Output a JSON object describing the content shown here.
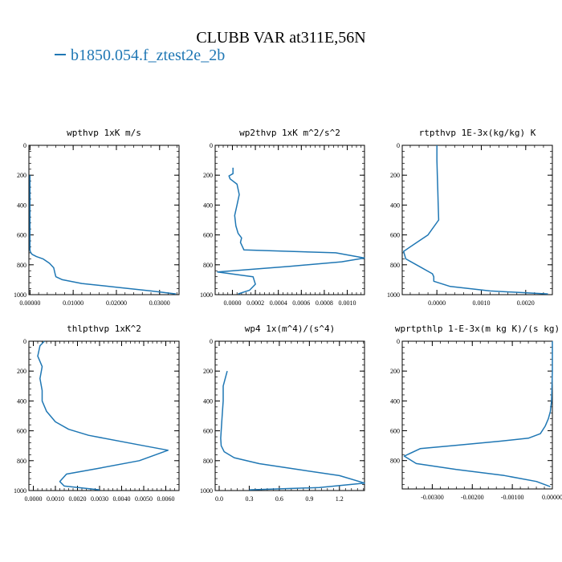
{
  "title": "CLUBB VAR at311E,56N",
  "legend": {
    "label": "b1850.054.f_ztest2e_2b",
    "color": "#1f77b4"
  },
  "chart_data": [
    {
      "type": "line",
      "title": "wpthvp   1xK m/s",
      "xlim": [
        -0.00025,
        0.0345
      ],
      "ylim": [
        1000,
        0
      ],
      "xticks": [
        0,
        0.01,
        0.02,
        0.03
      ],
      "xticklabels": [
        "0.00000",
        "0.01000",
        "0.02000",
        "0.03000"
      ],
      "yticks": [
        0,
        200,
        400,
        600,
        800,
        1000
      ],
      "series": [
        {
          "color": "#1f77b4",
          "x": [
            0,
            0,
            0,
            0,
            0,
            0,
            0,
            0.0001,
            0.0005,
            0.0015,
            0.003,
            0.0045,
            0.0055,
            0.0058,
            0.006,
            0.0075,
            0.012,
            0.02,
            0.028,
            0.0338
          ],
          "y": [
            200,
            300,
            400,
            500,
            600,
            650,
            700,
            715,
            730,
            745,
            760,
            790,
            820,
            860,
            880,
            900,
            925,
            950,
            975,
            995
          ]
        }
      ]
    },
    {
      "type": "line",
      "title": "wp2thvp   1xK m^2/s^2",
      "xlim": [
        -0.00015,
        0.00115
      ],
      "ylim": [
        1000,
        0
      ],
      "xticks": [
        0,
        0.0002,
        0.0004,
        0.0006,
        0.0008,
        0.001
      ],
      "xticklabels": [
        "0.0000",
        "0.0002",
        "0.0004",
        "0.0006",
        "0.0008",
        "0.0010"
      ],
      "yticks": [
        0,
        200,
        400,
        600,
        800,
        1000
      ],
      "series": [
        {
          "color": "#1f77b4",
          "x": [
            5e-06,
            5e-06,
            -3e-05,
            -2e-05,
            4e-05,
            6e-05,
            4e-05,
            2e-05,
            3e-05,
            5e-05,
            8e-05,
            7e-05,
            0.0001,
            0.0009,
            0.00115,
            0.00095,
            0.0005,
            -0.00013,
            0.00018,
            0.0002,
            0.00015,
            5e-05
          ],
          "y": [
            150,
            190,
            205,
            225,
            260,
            330,
            400,
            470,
            540,
            590,
            620,
            650,
            700,
            720,
            755,
            780,
            810,
            848,
            880,
            930,
            970,
            995
          ]
        }
      ]
    },
    {
      "type": "line",
      "title": "rtpthvp   1E-3x(kg/kg) K",
      "xlim": [
        -0.00078,
        0.0026
      ],
      "ylim": [
        1000,
        0
      ],
      "xticks": [
        0,
        0.001,
        0.002
      ],
      "xticklabels": [
        "0.0000",
        "0.0010",
        "0.0020"
      ],
      "yticks": [
        0,
        200,
        400,
        600,
        800,
        1000
      ],
      "series": [
        {
          "color": "#1f77b4",
          "x": [
            0,
            0,
            1e-05,
            2e-05,
            3e-05,
            4e-05,
            -0.0002,
            -0.0005,
            -0.00075,
            -0.0007,
            -0.0004,
            -0.0001,
            -7e-05,
            -7e-05,
            0.0003,
            0.0012,
            0.0025
          ],
          "y": [
            0,
            100,
            200,
            300,
            400,
            500,
            600,
            660,
            710,
            760,
            810,
            860,
            880,
            910,
            945,
            975,
            995
          ]
        }
      ]
    },
    {
      "type": "line",
      "title": "thlpthvp   1xK^2",
      "xlim": [
        -0.0002,
        0.0066
      ],
      "ylim": [
        1000,
        0
      ],
      "xticks": [
        0,
        0.001,
        0.002,
        0.003,
        0.004,
        0.005,
        0.006
      ],
      "xticklabels": [
        "0.0000",
        "0.0010",
        "0.0020",
        "0.0030",
        "0.0040",
        "0.0050",
        "0.0060"
      ],
      "yticks": [
        0,
        200,
        400,
        600,
        800,
        1000
      ],
      "series": [
        {
          "color": "#1f77b4",
          "x": [
            0.0005,
            0.0003,
            0.0002,
            0.0004,
            0.0003,
            0.0004,
            0.0004,
            0.0006,
            0.001,
            0.0016,
            0.0025,
            0.005,
            0.0061,
            0.0048,
            0.003,
            0.0015,
            0.0012,
            0.0014,
            0.003
          ],
          "y": [
            0,
            30,
            100,
            170,
            250,
            330,
            400,
            470,
            540,
            590,
            630,
            700,
            730,
            800,
            850,
            890,
            940,
            970,
            995
          ]
        }
      ]
    },
    {
      "type": "line",
      "title": "wp4   1x(m^4)/(s^4)",
      "xlim": [
        -0.04,
        1.45
      ],
      "ylim": [
        1000,
        0
      ],
      "xticks": [
        0,
        0.3,
        0.6,
        0.9,
        1.2
      ],
      "xticklabels": [
        "0.0",
        "0.3",
        "0.6",
        "0.9",
        "1.2"
      ],
      "yticks": [
        0,
        200,
        400,
        600,
        800,
        1000
      ],
      "series": [
        {
          "color": "#1f77b4",
          "x": [
            0.08,
            0.04,
            0.04,
            0.03,
            0.02,
            0.015,
            0.02,
            0.05,
            0.15,
            0.4,
            0.8,
            1.2,
            1.45,
            1.0,
            0.3
          ],
          "y": [
            200,
            300,
            400,
            500,
            600,
            650,
            700,
            740,
            780,
            820,
            860,
            900,
            950,
            980,
            995
          ]
        }
      ]
    },
    {
      "type": "line",
      "title": "wprtpthlp   1-E-3x(m kg K)/(s kg)",
      "xlim": [
        -0.00375,
        0
      ],
      "ylim": [
        990,
        0
      ],
      "xticks": [
        -0.003,
        -0.002,
        -0.001,
        0
      ],
      "xticklabels": [
        "-0.00300",
        "-0.00200",
        "-0.00100",
        "0.00000"
      ],
      "yticks": [
        0,
        200,
        400,
        600,
        800,
        1000
      ],
      "series": [
        {
          "color": "#1f77b4",
          "x": [
            0,
            0,
            -2e-05,
            -5e-05,
            -0.0001,
            -0.00018,
            -0.0003,
            -0.0006,
            -0.0013,
            -0.0025,
            -0.0033,
            -0.0037,
            -0.0034,
            -0.0024,
            -0.0012,
            -0.0004,
            -5e-05
          ],
          "y": [
            0,
            200,
            400,
            470,
            520,
            570,
            620,
            650,
            670,
            700,
            720,
            770,
            820,
            860,
            900,
            940,
            975
          ]
        }
      ]
    }
  ]
}
